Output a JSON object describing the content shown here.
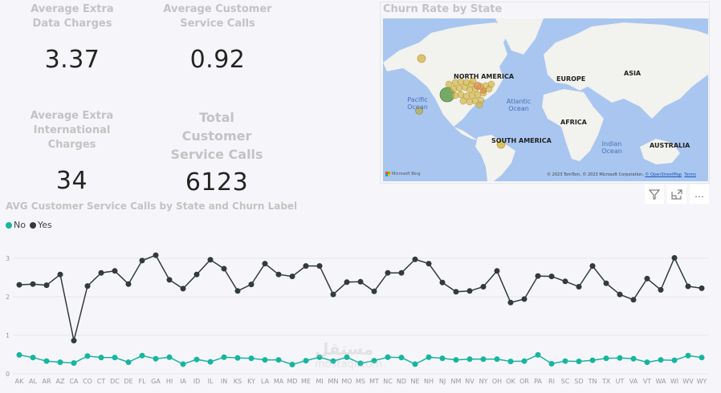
{
  "kpis": [
    {
      "title": "Average Extra Data Charges",
      "value": "3.37"
    },
    {
      "title": "Average Customer Service Calls",
      "value": "0.92"
    },
    {
      "title": "Average Extra International Charges",
      "value": "34"
    },
    {
      "title": "Total Customer Service Calls",
      "value": "6123"
    }
  ],
  "map": {
    "title": "Churn Rate by State",
    "labels": {
      "north_america": "NORTH AMERICA",
      "south_america": "SOUTH AMERICA",
      "europe": "EUROPE",
      "asia": "ASIA",
      "africa": "AFRICA",
      "australia": "AUSTRALIA",
      "pacific": "Pacific Ocean",
      "atlantic": "Atlantic Ocean",
      "indian": "Indian Ocean"
    },
    "bing_label": "Microsoft Bing",
    "attribution": "© 2023 TomTom, © 2023 Microsoft Corporation, ",
    "osm_link": "© OpenStreetMap",
    "terms_link": "Terms",
    "colors": {
      "water": "#a8c6f0",
      "land": "#f2f2ee",
      "bubble_yellow": "#d6b84a",
      "bubble_orange": "#e08a4a",
      "bubble_green": "#5f9e4d"
    }
  },
  "visual_header": {
    "filter_icon": "filter-icon",
    "focus_icon": "focus-mode-icon",
    "more_icon": "more-options-icon",
    "more_label": "…"
  },
  "chart": {
    "title": "AVG Customer Service Calls by State and Churn Label",
    "legend": [
      {
        "label": "No",
        "color": "#17b5a0"
      },
      {
        "label": "Yes",
        "color": "#323a3d"
      }
    ]
  },
  "watermark": {
    "line1": "مستقل",
    "line2": "mostaql.com"
  },
  "chart_data": {
    "type": "line",
    "title": "AVG Customer Service Calls by State and Churn Label",
    "xlabel": "",
    "ylabel": "",
    "ylim": [
      0,
      3.2
    ],
    "yticks": [
      0,
      1,
      2,
      3
    ],
    "grid": true,
    "legend_position": "top-left",
    "categories": [
      "AK",
      "AL",
      "AR",
      "AZ",
      "CA",
      "CO",
      "CT",
      "DC",
      "DE",
      "FL",
      "GA",
      "HI",
      "IA",
      "ID",
      "IL",
      "IN",
      "KS",
      "KY",
      "LA",
      "MA",
      "MD",
      "ME",
      "MI",
      "MN",
      "MO",
      "MS",
      "MT",
      "NC",
      "ND",
      "NE",
      "NH",
      "NJ",
      "NM",
      "NV",
      "NY",
      "OH",
      "OK",
      "OR",
      "PA",
      "RI",
      "SC",
      "SD",
      "TN",
      "TX",
      "UT",
      "VA",
      "VT",
      "WA",
      "WI",
      "WV",
      "WY"
    ],
    "series": [
      {
        "name": "No",
        "color": "#17b5a0",
        "values": [
          0.49,
          0.42,
          0.33,
          0.3,
          0.28,
          0.46,
          0.42,
          0.42,
          0.3,
          0.47,
          0.39,
          0.43,
          0.25,
          0.37,
          0.31,
          0.43,
          0.41,
          0.4,
          0.36,
          0.36,
          0.24,
          0.34,
          0.43,
          0.33,
          0.43,
          0.27,
          0.34,
          0.43,
          0.42,
          0.25,
          0.43,
          0.4,
          0.36,
          0.38,
          0.38,
          0.38,
          0.32,
          0.33,
          0.49,
          0.26,
          0.33,
          0.32,
          0.35,
          0.4,
          0.41,
          0.39,
          0.3,
          0.36,
          0.35,
          0.47,
          0.42
        ]
      },
      {
        "name": "Yes",
        "color": "#323a3d",
        "values": [
          2.31,
          2.33,
          2.3,
          2.58,
          0.86,
          2.28,
          2.62,
          2.67,
          2.33,
          2.94,
          3.08,
          2.44,
          2.21,
          2.58,
          2.96,
          2.73,
          2.15,
          2.32,
          2.86,
          2.58,
          2.53,
          2.8,
          2.8,
          2.06,
          2.38,
          2.39,
          2.14,
          2.62,
          2.62,
          2.97,
          2.86,
          2.37,
          2.13,
          2.15,
          2.26,
          2.67,
          1.85,
          1.94,
          2.54,
          2.53,
          2.4,
          2.26,
          2.8,
          2.35,
          2.06,
          1.92,
          2.47,
          2.18,
          3.01,
          2.27,
          2.22
        ]
      }
    ]
  }
}
